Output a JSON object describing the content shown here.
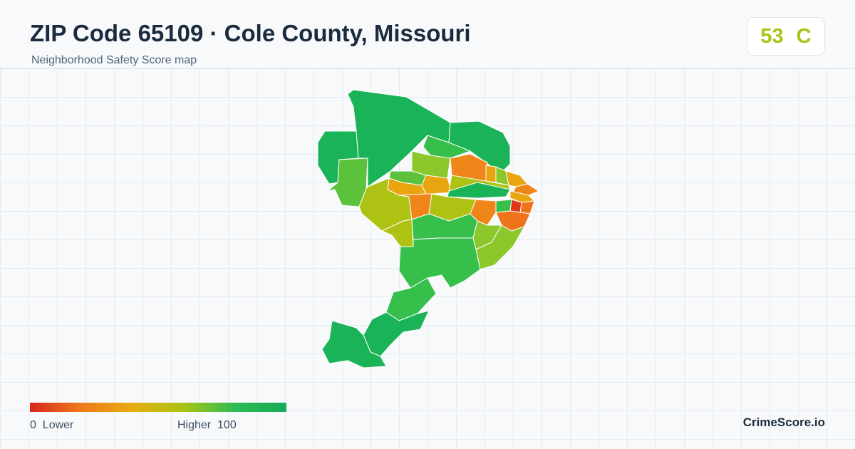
{
  "header": {
    "title": "ZIP Code 65109 · Cole County, Missouri",
    "subtitle": "Neighborhood Safety Score map"
  },
  "score": {
    "value": "53",
    "grade": "C",
    "color": "#a8c414"
  },
  "legend": {
    "min_value": "0",
    "min_label": "Lower",
    "max_label": "Higher",
    "max_value": "100",
    "gradient_colors": [
      "#d7271f",
      "#f07a1a",
      "#e8ad0e",
      "#a9c414",
      "#2cbc54",
      "#16a957"
    ]
  },
  "brand": "CrimeScore.io",
  "map_colors": {
    "green_dark": "#1bb357",
    "green": "#37bf4c",
    "green_light": "#5cc23c",
    "lime": "#8cc72b",
    "yellow_green": "#aec214",
    "amber": "#e9a50f",
    "orange": "#f08519",
    "orange_dark": "#ef731a",
    "red": "#e2361c"
  }
}
